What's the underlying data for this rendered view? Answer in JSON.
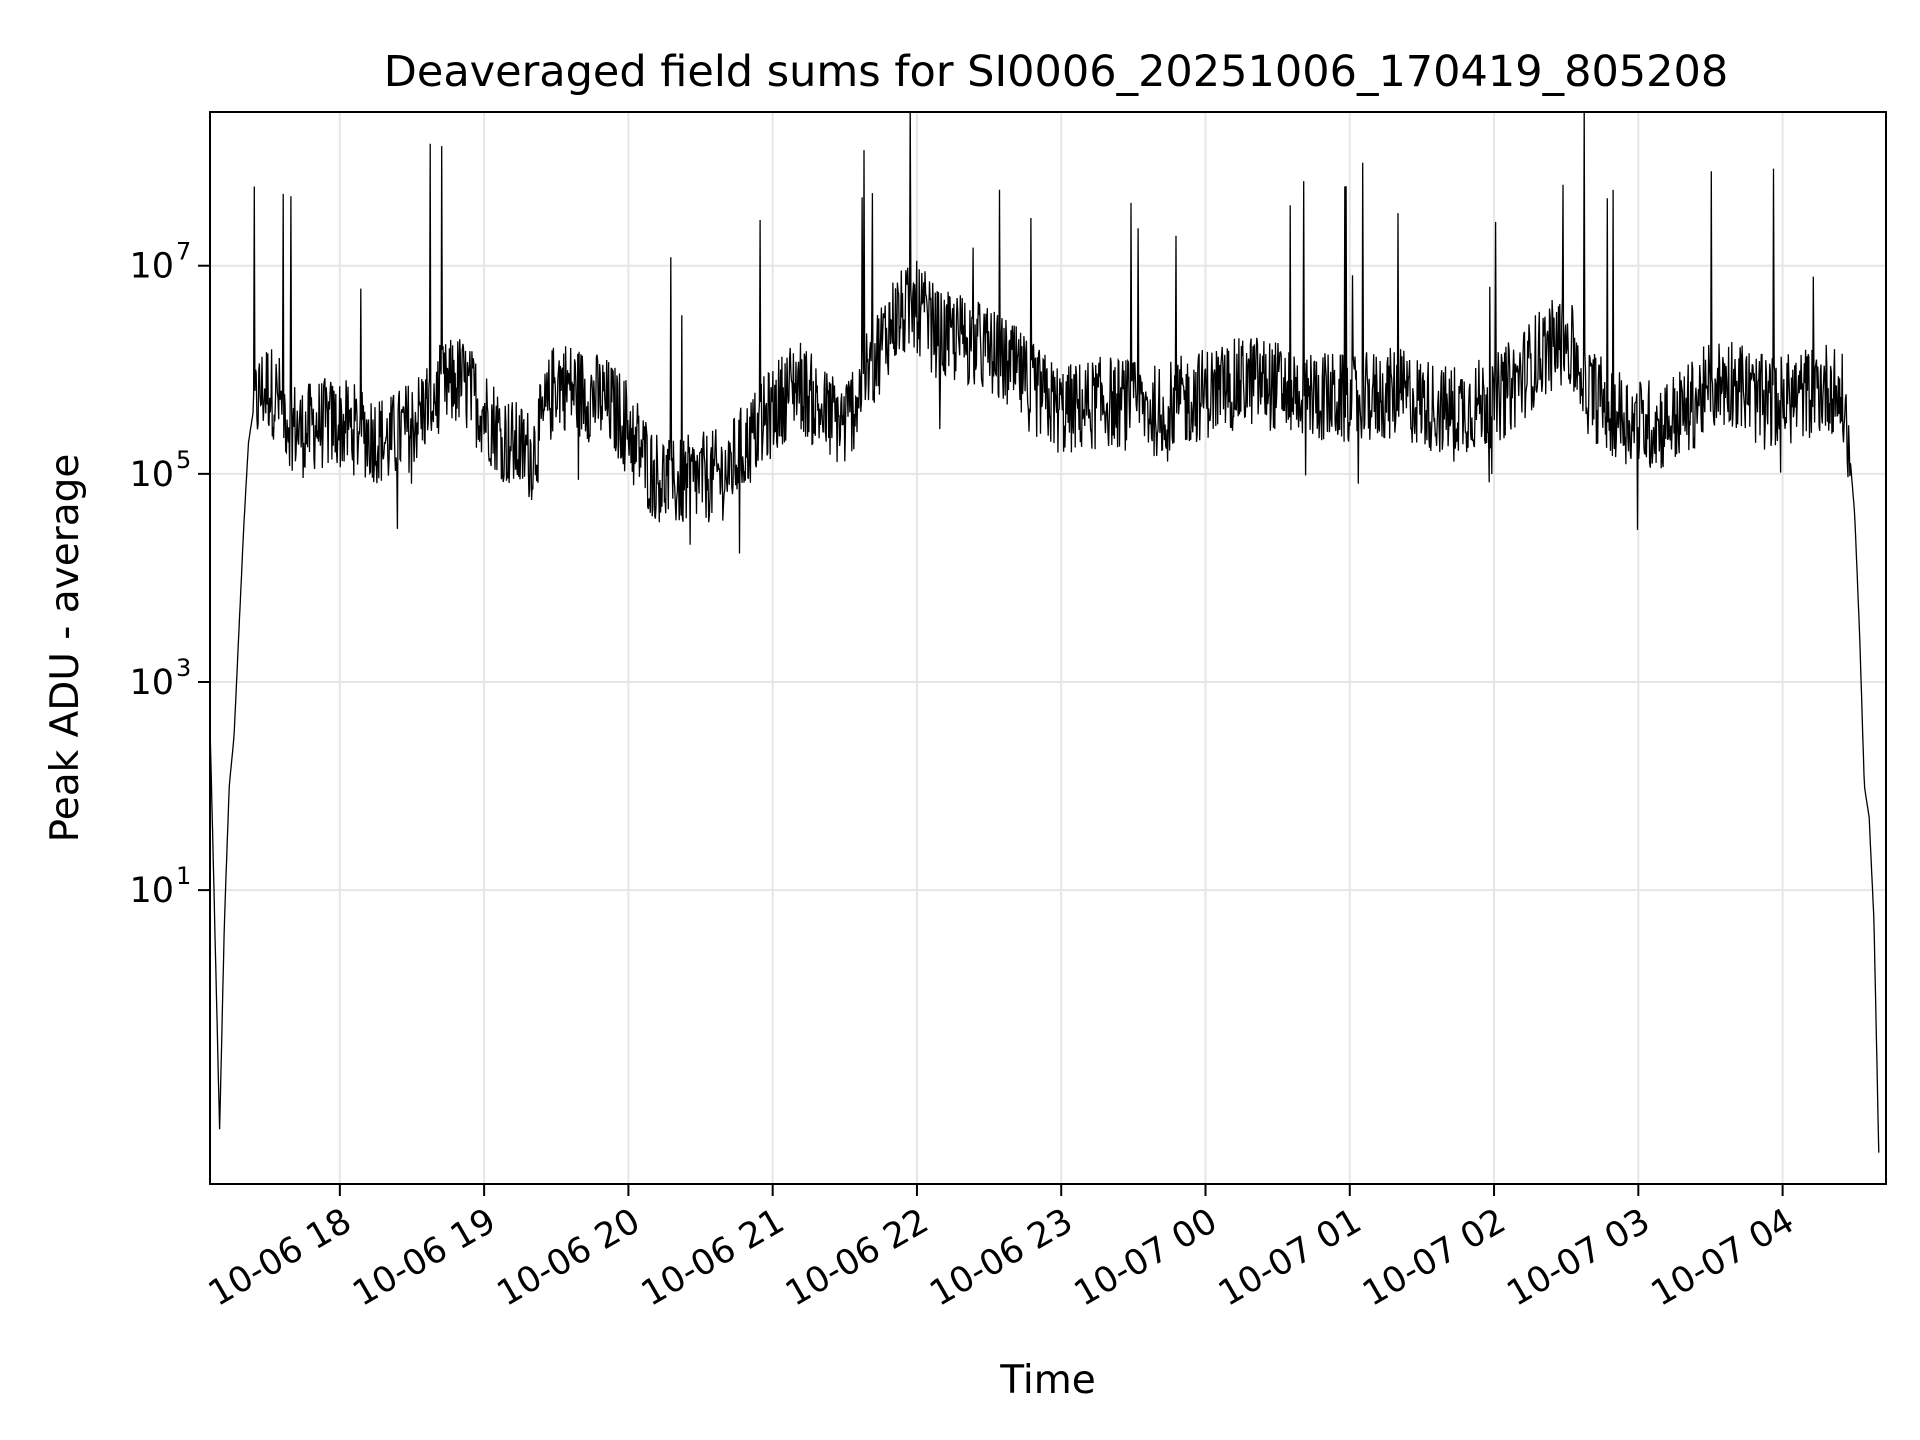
{
  "chart_data": {
    "type": "line",
    "title": "Deaveraged field sums for SI0006_20251006_170419_805208",
    "xlabel": "Time",
    "ylabel": "Peak ADU - average",
    "x_tick_labels": [
      "10-06 18",
      "10-06 19",
      "10-06 20",
      "10-06 21",
      "10-06 22",
      "10-06 23",
      "10-07 00",
      "10-07 01",
      "10-07 02",
      "10-07 03",
      "10-07 04"
    ],
    "y_ticks": [
      {
        "base": "10",
        "exp": "1",
        "value": 10
      },
      {
        "base": "10",
        "exp": "3",
        "value": 1000
      },
      {
        "base": "10",
        "exp": "5",
        "value": 100000
      },
      {
        "base": "10",
        "exp": "7",
        "value": 10000000
      }
    ],
    "y_scale": "log",
    "ylim": [
      0.015,
      300000000
    ],
    "xlim": [
      "2025-10-06 17:06",
      "2025-10-07 04:43"
    ],
    "grid": true,
    "line_color": "#000000",
    "series": [
      {
        "x": [
          "2025-10-06 17:06",
          "2025-10-06 17:10",
          "2025-10-06 17:12",
          "2025-10-06 17:14",
          "2025-10-06 17:16",
          "2025-10-06 17:18",
          "2025-10-06 17:20",
          "2025-10-06 17:22",
          "2025-10-06 17:24",
          "2025-10-06 17:27",
          "2025-10-06 17:30",
          "2025-10-06 17:35",
          "2025-10-06 17:40",
          "2025-10-06 17:45",
          "2025-10-06 17:50",
          "2025-10-06 18:00",
          "2025-10-06 18:10",
          "2025-10-06 18:20",
          "2025-10-06 18:30",
          "2025-10-06 18:40",
          "2025-10-06 18:50",
          "2025-10-06 19:00",
          "2025-10-06 19:10",
          "2025-10-06 19:20",
          "2025-10-06 19:30",
          "2025-10-06 19:40",
          "2025-10-06 19:50",
          "2025-10-06 20:00",
          "2025-10-06 20:10",
          "2025-10-06 20:20",
          "2025-10-06 20:30",
          "2025-10-06 20:40",
          "2025-10-06 20:50",
          "2025-10-06 21:00",
          "2025-10-06 21:10",
          "2025-10-06 21:20",
          "2025-10-06 21:30",
          "2025-10-06 21:40",
          "2025-10-06 21:50",
          "2025-10-06 22:00",
          "2025-10-06 22:10",
          "2025-10-06 22:20",
          "2025-10-06 22:30",
          "2025-10-06 22:40",
          "2025-10-06 22:50",
          "2025-10-06 23:00",
          "2025-10-06 23:20",
          "2025-10-06 23:40",
          "2025-10-07 00:00",
          "2025-10-07 00:20",
          "2025-10-07 00:40",
          "2025-10-07 01:00",
          "2025-10-07 01:20",
          "2025-10-07 01:40",
          "2025-10-07 02:00",
          "2025-10-07 02:10",
          "2025-10-07 02:20",
          "2025-10-07 02:30",
          "2025-10-07 02:40",
          "2025-10-07 02:50",
          "2025-10-07 03:00",
          "2025-10-07 03:10",
          "2025-10-07 03:20",
          "2025-10-07 03:30",
          "2025-10-07 03:40",
          "2025-10-07 03:50",
          "2025-10-07 04:00",
          "2025-10-07 04:10",
          "2025-10-07 04:20",
          "2025-10-07 04:25",
          "2025-10-07 04:28",
          "2025-10-07 04:30",
          "2025-10-07 04:32",
          "2025-10-07 04:34",
          "2025-10-07 04:36",
          "2025-10-07 04:38",
          "2025-10-07 04:40"
        ],
        "y": [
          400,
          0.05,
          5,
          100,
          300,
          3000,
          30000,
          200000,
          400000,
          600000,
          700000,
          500000,
          300000,
          250000,
          300000,
          300000,
          250000,
          200000,
          300000,
          600000,
          800000,
          400000,
          200000,
          150000,
          800000,
          600000,
          500000,
          300000,
          100000,
          80000,
          90000,
          100000,
          200000,
          400000,
          800000,
          400000,
          300000,
          1000000,
          3000000,
          4000000,
          2000000,
          2000000,
          1500000,
          1000000,
          600000,
          400000,
          500000,
          400000,
          600000,
          800000,
          600000,
          500000,
          600000,
          400000,
          500000,
          800000,
          1500000,
          2000000,
          600000,
          400000,
          300000,
          300000,
          400000,
          700000,
          800000,
          500000,
          500000,
          600000,
          700000,
          500000,
          150000,
          40000,
          3000,
          100,
          50,
          5,
          0.03
        ]
      }
    ]
  }
}
